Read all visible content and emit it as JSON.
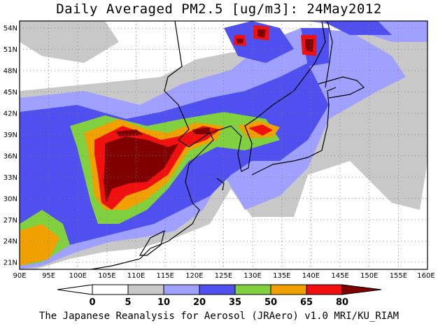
{
  "title": "Daily Averaged PM2.5 [ug/m3]: 24May2012",
  "footer": "The Japanese Reanalysis for Aerosol (JRAero) v1.0 MRI/KU_RIAM",
  "lon_labels": [
    "90E",
    "95E",
    "100E",
    "105E",
    "110E",
    "115E",
    "120E",
    "125E",
    "130E",
    "135E",
    "140E",
    "145E",
    "150E",
    "155E",
    "160E"
  ],
  "lat_labels": [
    "54N",
    "51N",
    "48N",
    "45N",
    "42N",
    "39N",
    "36N",
    "33N",
    "30N",
    "27N",
    "24N",
    "21N"
  ],
  "colorbar": {
    "labels": [
      "0",
      "5",
      "10",
      "20",
      "35",
      "50",
      "65",
      "80"
    ],
    "colors": [
      "#ffffff",
      "#c8c8c8",
      "#a0a0ff",
      "#5050f0",
      "#80d040",
      "#f0a000",
      "#f01010",
      "#800000"
    ]
  },
  "map_extent": {
    "lon": [
      90,
      160
    ],
    "lat": [
      20,
      55
    ]
  }
}
